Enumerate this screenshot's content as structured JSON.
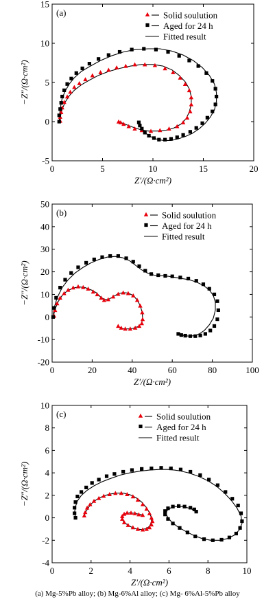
{
  "caption": "(a) Mg-5%Pb alloy; (b) Mg-6%Al alloy; (c) Mg- 6%Al-5%Pb alloy",
  "legend": {
    "solid": "Solid soulution",
    "aged": "Aged for 24 h",
    "fitted": "Fitted result"
  },
  "colors": {
    "solid": "#e8000b",
    "aged": "#000000",
    "fit": "#000000"
  },
  "chart_data": [
    {
      "type": "scatter",
      "panel_label": "(a)",
      "xlabel": "Z′/(Ω·cm²)",
      "ylabel": "−Z″/(Ω·cm²)",
      "xlim": [
        0,
        20
      ],
      "ylim": [
        -5,
        15
      ],
      "xticks": [
        0,
        5,
        10,
        15,
        20
      ],
      "yticks": [
        -5,
        0,
        5,
        10,
        15
      ],
      "legend_position": "top-right",
      "series": [
        {
          "key": "solid",
          "marker": "triangle",
          "x": [
            0.8,
            0.8,
            0.9,
            1.0,
            1.2,
            1.5,
            1.8,
            2.2,
            2.7,
            3.3,
            4.0,
            4.8,
            5.6,
            6.4,
            7.3,
            8.2,
            9.2,
            10.2,
            11.2,
            12.0,
            12.7,
            13.2,
            13.6,
            13.8,
            13.8,
            13.7,
            13.4,
            13.0,
            12.4,
            11.6,
            10.7,
            9.8,
            8.9,
            8.2,
            7.6,
            7.1,
            6.8,
            6.6
          ],
          "y": [
            0.1,
            0.6,
            1.2,
            1.8,
            2.5,
            3.2,
            3.8,
            4.4,
            4.9,
            5.4,
            5.9,
            6.3,
            6.6,
            6.9,
            7.1,
            7.3,
            7.3,
            7.2,
            6.8,
            6.3,
            5.6,
            4.8,
            4.0,
            3.1,
            2.2,
            1.3,
            0.5,
            -0.1,
            -0.6,
            -0.9,
            -1.1,
            -1.2,
            -1.1,
            -0.9,
            -0.6,
            -0.3,
            -0.1,
            0.0
          ]
        },
        {
          "key": "aged",
          "marker": "square",
          "x": [
            0.7,
            0.7,
            0.8,
            0.9,
            1.0,
            1.2,
            1.5,
            1.9,
            2.4,
            3.0,
            3.7,
            4.6,
            5.6,
            6.7,
            7.9,
            9.1,
            10.3,
            11.5,
            12.6,
            13.6,
            14.5,
            15.3,
            15.9,
            16.2,
            16.3,
            16.2,
            15.9,
            15.4,
            14.9,
            14.3,
            13.7,
            13.0,
            12.4,
            11.8,
            11.2,
            10.6,
            10.1,
            9.6,
            9.2,
            8.9,
            8.7,
            8.6
          ],
          "y": [
            0.0,
            0.8,
            1.6,
            2.4,
            3.2,
            4.0,
            4.8,
            5.5,
            6.2,
            6.8,
            7.4,
            8.0,
            8.5,
            8.9,
            9.2,
            9.3,
            9.2,
            8.9,
            8.4,
            7.8,
            7.1,
            6.2,
            5.2,
            4.2,
            3.2,
            2.2,
            1.3,
            0.5,
            -0.2,
            -0.8,
            -1.3,
            -1.7,
            -2.0,
            -2.2,
            -2.3,
            -2.3,
            -2.1,
            -1.8,
            -1.4,
            -0.9,
            -0.5,
            -0.1
          ]
        }
      ],
      "fit_curves": [
        {
          "x": [
            0.8,
            0.85,
            1.0,
            1.3,
            1.7,
            2.2,
            2.9,
            3.7,
            4.6,
            5.6,
            6.7,
            7.8,
            8.9,
            10.0,
            11.0,
            11.9,
            12.6,
            13.2,
            13.6,
            13.8,
            13.8,
            13.6,
            13.3,
            12.8,
            12.1,
            11.3,
            10.4,
            9.5,
            8.7,
            8.0,
            7.4,
            7.0,
            6.7,
            6.6
          ],
          "y": [
            0.0,
            0.8,
            1.6,
            2.5,
            3.3,
            4.0,
            4.7,
            5.3,
            5.9,
            6.4,
            6.8,
            7.1,
            7.3,
            7.3,
            7.1,
            6.6,
            5.9,
            5.1,
            4.2,
            3.2,
            2.2,
            1.2,
            0.4,
            -0.3,
            -0.8,
            -1.1,
            -1.2,
            -1.2,
            -1.0,
            -0.7,
            -0.4,
            -0.2,
            0.0,
            0.0
          ]
        },
        {
          "x": [
            0.7,
            0.75,
            0.85,
            1.0,
            1.3,
            1.7,
            2.2,
            2.9,
            3.8,
            4.8,
            5.9,
            7.1,
            8.3,
            9.5,
            10.7,
            11.9,
            13.0,
            14.0,
            14.9,
            15.6,
            16.1,
            16.3,
            16.3,
            16.1,
            15.7,
            15.2,
            14.6,
            13.9,
            13.2,
            12.5,
            11.8,
            11.1,
            10.5,
            9.9,
            9.4,
            9.0,
            8.7,
            8.6
          ],
          "y": [
            0.0,
            1.0,
            2.0,
            3.0,
            3.9,
            4.8,
            5.6,
            6.4,
            7.1,
            7.8,
            8.4,
            8.9,
            9.2,
            9.3,
            9.3,
            9.0,
            8.5,
            7.8,
            6.9,
            5.9,
            4.8,
            3.7,
            2.6,
            1.5,
            0.6,
            -0.2,
            -0.9,
            -1.5,
            -1.9,
            -2.2,
            -2.4,
            -2.4,
            -2.3,
            -2.0,
            -1.6,
            -1.1,
            -0.6,
            -0.1
          ]
        }
      ]
    },
    {
      "type": "scatter",
      "panel_label": "(b)",
      "xlabel": "Z′/(Ω·cm²)",
      "ylabel": "−Z″/(Ω·cm²)",
      "xlim": [
        0,
        100
      ],
      "ylim": [
        -20,
        50
      ],
      "xticks": [
        0,
        20,
        40,
        60,
        80,
        100
      ],
      "yticks": [
        -20,
        -10,
        0,
        10,
        20,
        30,
        40,
        50
      ],
      "legend_position": "top-right",
      "series": [
        {
          "key": "solid",
          "marker": "triangle",
          "x": [
            1.0,
            1.5,
            2.5,
            4.0,
            6.0,
            8.0,
            10.5,
            13.0,
            15.5,
            18.0,
            20.5,
            22.5,
            24.5,
            26.0,
            28.0,
            30.5,
            33.0,
            35.5,
            38.0,
            40.5,
            42.5,
            44.0,
            45.0,
            45.2,
            44.8,
            43.5,
            41.5,
            39.0,
            36.5,
            34.5,
            33.0
          ],
          "y": [
            0.5,
            3.0,
            6.0,
            8.5,
            10.5,
            12.0,
            13.0,
            13.5,
            13.2,
            12.5,
            11.2,
            10.0,
            8.5,
            7.5,
            7.8,
            9.0,
            10.2,
            10.8,
            10.5,
            9.5,
            7.5,
            5.0,
            2.0,
            -1.0,
            -2.8,
            -4.0,
            -4.8,
            -5.2,
            -5.2,
            -4.8,
            -4.0
          ]
        },
        {
          "key": "aged",
          "marker": "square",
          "x": [
            0.5,
            1.0,
            2.0,
            4.0,
            6.5,
            9.5,
            13.0,
            17.0,
            21.0,
            25.0,
            29.0,
            33.0,
            37.0,
            40.5,
            43.5,
            46.5,
            49.5,
            53.0,
            56.5,
            60.0,
            64.0,
            68.0,
            72.0,
            75.5,
            78.5,
            81.0,
            82.5,
            83.0,
            82.5,
            81.0,
            79.0,
            76.5,
            74.0,
            71.5,
            69.0,
            66.5,
            64.5,
            63.0
          ],
          "y": [
            0.0,
            4.0,
            8.5,
            13.0,
            16.5,
            19.5,
            22.0,
            24.0,
            25.5,
            26.5,
            27.0,
            27.0,
            26.0,
            24.5,
            22.5,
            20.5,
            19.0,
            18.5,
            18.2,
            18.0,
            17.5,
            17.0,
            16.0,
            14.5,
            12.5,
            10.0,
            7.0,
            3.0,
            -1.0,
            -4.0,
            -6.0,
            -7.5,
            -8.2,
            -8.5,
            -8.5,
            -8.3,
            -8.0,
            -7.5
          ]
        }
      ],
      "fit_curves": [
        {
          "x": [
            0.5,
            1.5,
            3.0,
            5.0,
            7.5,
            10.5,
            13.5,
            16.5,
            19.5,
            22.0,
            24.0,
            26.0,
            28.0,
            30.5,
            33.0,
            35.5,
            38.0,
            40.5,
            42.5,
            44.0,
            45.0,
            45.2,
            44.5,
            43.0,
            40.5,
            38.0,
            35.5,
            33.5
          ],
          "y": [
            0.0,
            3.5,
            6.8,
            9.5,
            11.5,
            12.8,
            13.3,
            13.0,
            12.0,
            10.8,
            9.0,
            7.8,
            7.7,
            9.0,
            10.3,
            10.8,
            10.6,
            9.5,
            7.5,
            5.0,
            2.0,
            -1.0,
            -3.0,
            -4.2,
            -5.0,
            -5.3,
            -5.2,
            -4.5
          ]
        },
        {
          "x": [
            0.5,
            1.0,
            2.5,
            5.0,
            8.0,
            11.5,
            15.5,
            19.5,
            23.5,
            27.5,
            31.5,
            35.0,
            38.5,
            41.5,
            44.5,
            47.5,
            51.0,
            54.5,
            58.0,
            61.5,
            65.0,
            68.5,
            72.0,
            75.5,
            78.5,
            80.5,
            81.5,
            81.5,
            80.5,
            78.5,
            76.0,
            73.5,
            71.0,
            68.5,
            66.0,
            64.0,
            62.5
          ],
          "y": [
            0.0,
            4.0,
            8.5,
            13.0,
            16.5,
            19.5,
            22.0,
            24.0,
            25.5,
            26.5,
            26.8,
            26.3,
            25.0,
            23.0,
            21.0,
            19.5,
            18.5,
            18.3,
            18.0,
            17.5,
            17.0,
            16.5,
            15.5,
            14.0,
            12.0,
            9.5,
            6.5,
            3.0,
            -0.5,
            -3.5,
            -6.0,
            -7.5,
            -8.3,
            -8.5,
            -8.3,
            -8.0,
            -7.5
          ]
        }
      ]
    },
    {
      "type": "scatter",
      "panel_label": "(c)",
      "xlabel": "Z′/(Ω·cm²)",
      "ylabel": "−Z″/(Ω·cm²)",
      "xlim": [
        0,
        10
      ],
      "ylim": [
        -4,
        10
      ],
      "xticks": [
        0,
        2,
        4,
        6,
        8,
        10
      ],
      "yticks": [
        -4,
        -2,
        0,
        2,
        4,
        6,
        8,
        10
      ],
      "legend_position": "top-right",
      "series": [
        {
          "key": "solid",
          "marker": "triangle",
          "x": [
            1.65,
            1.7,
            1.8,
            1.95,
            2.15,
            2.4,
            2.65,
            2.95,
            3.25,
            3.55,
            3.85,
            4.15,
            4.4,
            4.65,
            4.85,
            5.0,
            5.1,
            5.15,
            5.1,
            5.0,
            4.85,
            4.65,
            4.4,
            4.15,
            3.9,
            3.7,
            3.6,
            3.6,
            3.7,
            3.85,
            4.05,
            4.25,
            4.45,
            4.65
          ],
          "y": [
            0.2,
            0.5,
            0.9,
            1.2,
            1.5,
            1.75,
            1.95,
            2.1,
            2.2,
            2.2,
            2.1,
            1.9,
            1.6,
            1.2,
            0.8,
            0.4,
            0.0,
            -0.3,
            -0.6,
            -0.85,
            -1.0,
            -1.05,
            -1.0,
            -0.85,
            -0.65,
            -0.4,
            -0.1,
            0.15,
            0.35,
            0.45,
            0.45,
            0.4,
            0.3,
            0.25
          ]
        },
        {
          "key": "aged",
          "marker": "square",
          "x": [
            1.2,
            1.15,
            1.15,
            1.2,
            1.3,
            1.5,
            1.75,
            2.05,
            2.4,
            2.8,
            3.2,
            3.65,
            4.1,
            4.6,
            5.1,
            5.6,
            6.1,
            6.6,
            7.1,
            7.6,
            8.05,
            8.5,
            8.9,
            9.25,
            9.55,
            9.7,
            9.75,
            9.65,
            9.45,
            9.1,
            8.7,
            8.25,
            7.8,
            7.35,
            6.95,
            6.55,
            6.2,
            5.95,
            5.8,
            5.8,
            5.95,
            6.2,
            6.5,
            6.8,
            7.1,
            7.3,
            7.4
          ],
          "y": [
            0.0,
            0.4,
            0.9,
            1.4,
            1.9,
            2.3,
            2.7,
            3.1,
            3.4,
            3.7,
            3.9,
            4.1,
            4.25,
            4.35,
            4.4,
            4.45,
            4.4,
            4.3,
            4.1,
            3.8,
            3.4,
            2.9,
            2.3,
            1.7,
            1.1,
            0.4,
            -0.3,
            -0.9,
            -1.4,
            -1.75,
            -1.95,
            -2.0,
            -1.9,
            -1.65,
            -1.3,
            -0.9,
            -0.5,
            -0.1,
            0.3,
            0.6,
            0.85,
            1.0,
            1.05,
            1.0,
            0.9,
            0.75,
            0.55
          ]
        }
      ],
      "fit_curves": [
        {
          "x": [
            1.65,
            1.75,
            1.9,
            2.1,
            2.35,
            2.65,
            2.95,
            3.3,
            3.65,
            4.0,
            4.3,
            4.6,
            4.85,
            5.0,
            5.1,
            5.1,
            5.0,
            4.85,
            4.6,
            4.35,
            4.1,
            3.85,
            3.65,
            3.6,
            3.65,
            3.8,
            4.0,
            4.25,
            4.5,
            4.7
          ],
          "y": [
            0.2,
            0.6,
            1.0,
            1.4,
            1.7,
            1.95,
            2.1,
            2.2,
            2.2,
            2.05,
            1.8,
            1.4,
            0.9,
            0.45,
            0.0,
            -0.4,
            -0.75,
            -0.95,
            -1.05,
            -1.0,
            -0.85,
            -0.6,
            -0.3,
            0.0,
            0.25,
            0.4,
            0.45,
            0.4,
            0.3,
            0.25
          ]
        },
        {
          "x": [
            1.2,
            1.15,
            1.2,
            1.3,
            1.5,
            1.8,
            2.15,
            2.55,
            3.0,
            3.5,
            4.0,
            4.5,
            5.0,
            5.5,
            6.0,
            6.5,
            7.0,
            7.5,
            8.0,
            8.45,
            8.85,
            9.2,
            9.5,
            9.7,
            9.75,
            9.6,
            9.35,
            9.0,
            8.6,
            8.15,
            7.7,
            7.25,
            6.85,
            6.45,
            6.15,
            5.95,
            5.85,
            5.9,
            6.1,
            6.35,
            6.65,
            6.95,
            7.2,
            7.35
          ],
          "y": [
            0.0,
            0.5,
            1.0,
            1.5,
            2.0,
            2.45,
            2.85,
            3.2,
            3.5,
            3.8,
            4.0,
            4.15,
            4.25,
            4.3,
            4.3,
            4.2,
            4.0,
            3.7,
            3.3,
            2.8,
            2.2,
            1.55,
            0.85,
            0.15,
            -0.5,
            -1.1,
            -1.55,
            -1.85,
            -2.0,
            -2.0,
            -1.85,
            -1.55,
            -1.2,
            -0.8,
            -0.4,
            0.0,
            0.35,
            0.65,
            0.9,
            1.0,
            1.0,
            0.9,
            0.75,
            0.55
          ]
        }
      ]
    }
  ]
}
